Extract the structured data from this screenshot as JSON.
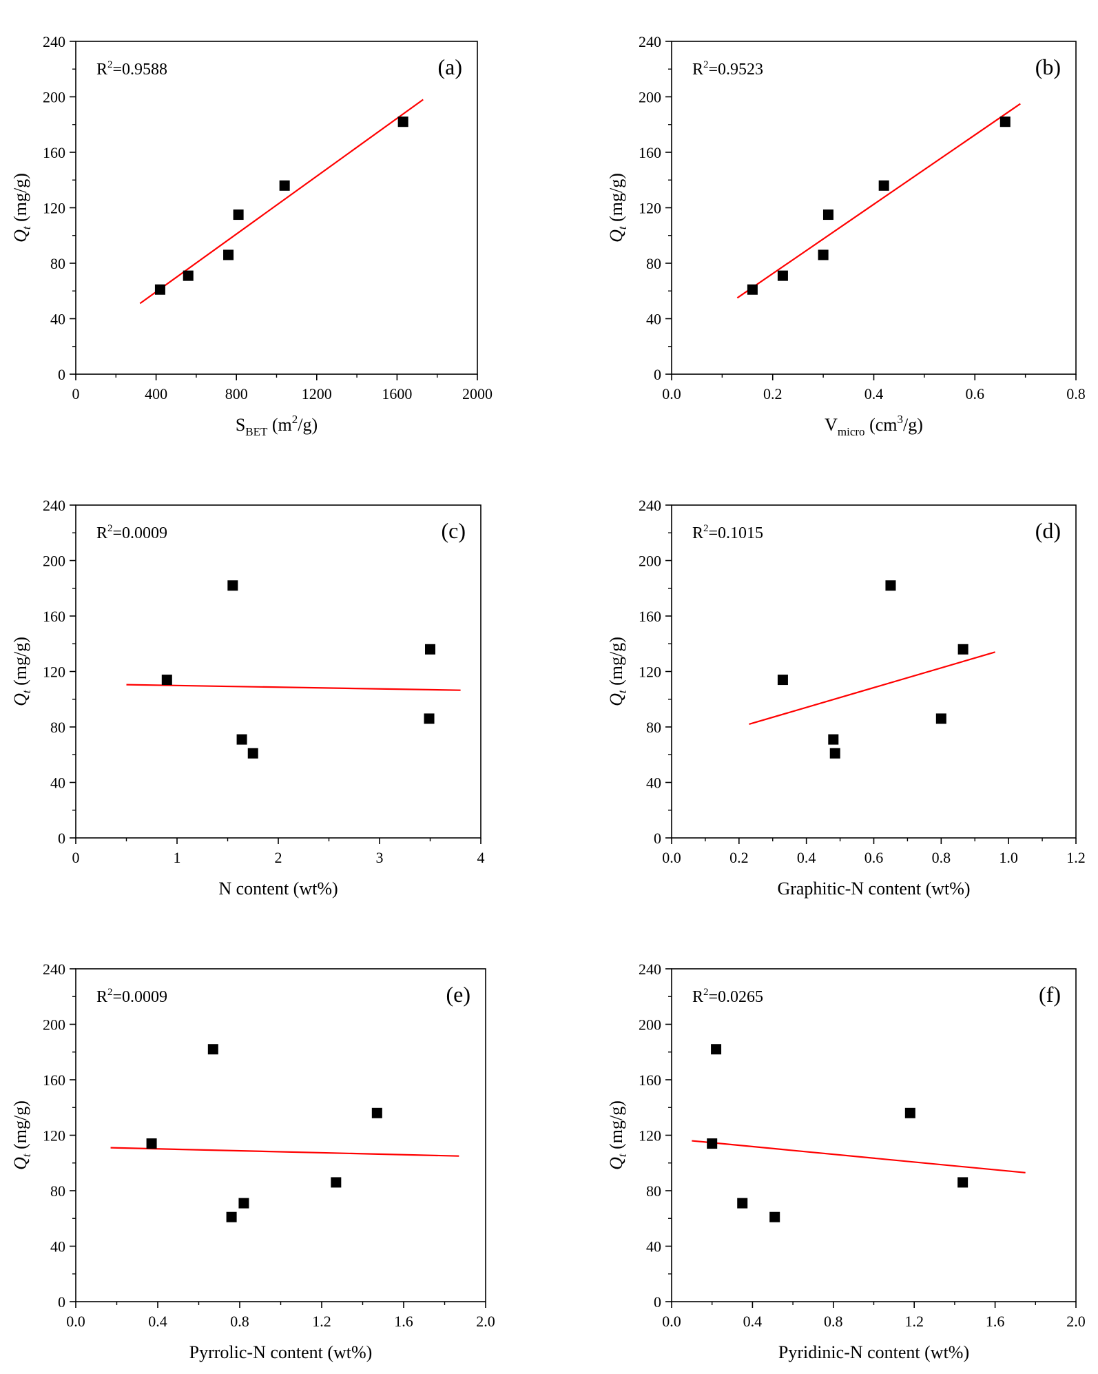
{
  "chart_data": [
    {
      "type": "scatter",
      "panel": "(a)",
      "r2_prefix": "R",
      "r2_sup": "2",
      "r2_value": "=0.9588",
      "ylabel": {
        "main": "Q",
        "sub": "t",
        "unit": " (mg/g)"
      },
      "xlabel": {
        "main": "S",
        "sub": "BET",
        "unit1": " (m",
        "sup": "2",
        "unit2": "/g)"
      },
      "xlim": [
        0,
        2000
      ],
      "ylim": [
        0,
        240
      ],
      "xticks": [
        {
          "v": 0,
          "label": "0"
        },
        {
          "v": 400,
          "label": "400"
        },
        {
          "v": 800,
          "label": "800"
        },
        {
          "v": 1200,
          "label": "1200"
        },
        {
          "v": 1600,
          "label": "1600"
        },
        {
          "v": 2000,
          "label": "2000"
        }
      ],
      "yticks": [
        {
          "v": 0,
          "label": "0"
        },
        {
          "v": 40,
          "label": "40"
        },
        {
          "v": 80,
          "label": "80"
        },
        {
          "v": 120,
          "label": "120"
        },
        {
          "v": 160,
          "label": "160"
        },
        {
          "v": 200,
          "label": "200"
        },
        {
          "v": 240,
          "label": "240"
        }
      ],
      "points": [
        [
          420,
          61
        ],
        [
          560,
          71
        ],
        [
          760,
          86
        ],
        [
          810,
          115
        ],
        [
          1040,
          136
        ],
        [
          1630,
          182
        ]
      ],
      "fit": [
        [
          320,
          51
        ],
        [
          1730,
          198
        ]
      ]
    },
    {
      "type": "scatter",
      "panel": "(b)",
      "r2_prefix": "R",
      "r2_sup": "2",
      "r2_value": "=0.9523",
      "ylabel": {
        "main": "Q",
        "sub": "t",
        "unit": " (mg/g)"
      },
      "xlabel": {
        "main": "V",
        "sub": "micro",
        "unit1": " (cm",
        "sup": "3",
        "unit2": "/g)"
      },
      "xlim": [
        0,
        0.8
      ],
      "ylim": [
        0,
        240
      ],
      "xticks": [
        {
          "v": 0,
          "label": "0.0"
        },
        {
          "v": 0.2,
          "label": "0.2"
        },
        {
          "v": 0.4,
          "label": "0.4"
        },
        {
          "v": 0.6,
          "label": "0.6"
        },
        {
          "v": 0.8,
          "label": "0.8"
        }
      ],
      "yticks": [
        {
          "v": 0,
          "label": "0"
        },
        {
          "v": 40,
          "label": "40"
        },
        {
          "v": 80,
          "label": "80"
        },
        {
          "v": 120,
          "label": "120"
        },
        {
          "v": 160,
          "label": "160"
        },
        {
          "v": 200,
          "label": "200"
        },
        {
          "v": 240,
          "label": "240"
        }
      ],
      "points": [
        [
          0.16,
          61
        ],
        [
          0.22,
          71
        ],
        [
          0.3,
          86
        ],
        [
          0.31,
          115
        ],
        [
          0.42,
          136
        ],
        [
          0.66,
          182
        ]
      ],
      "fit": [
        [
          0.13,
          55
        ],
        [
          0.69,
          195
        ]
      ]
    },
    {
      "type": "scatter",
      "panel": "(c)",
      "r2_prefix": "R",
      "r2_sup": "2",
      "r2_value": "=0.0009",
      "ylabel": {
        "main": "Q",
        "sub": "t",
        "unit": " (mg/g)"
      },
      "xlabel": {
        "main": "N content (wt%)"
      },
      "xlim": [
        0,
        4
      ],
      "ylim": [
        0,
        240
      ],
      "xticks": [
        {
          "v": 0,
          "label": "0"
        },
        {
          "v": 1,
          "label": "1"
        },
        {
          "v": 2,
          "label": "2"
        },
        {
          "v": 3,
          "label": "3"
        },
        {
          "v": 4,
          "label": "4"
        }
      ],
      "yticks": [
        {
          "v": 0,
          "label": "0"
        },
        {
          "v": 40,
          "label": "40"
        },
        {
          "v": 80,
          "label": "80"
        },
        {
          "v": 120,
          "label": "120"
        },
        {
          "v": 160,
          "label": "160"
        },
        {
          "v": 200,
          "label": "200"
        },
        {
          "v": 240,
          "label": "240"
        }
      ],
      "points": [
        [
          0.9,
          114
        ],
        [
          1.55,
          182
        ],
        [
          1.64,
          71
        ],
        [
          1.75,
          61
        ],
        [
          3.5,
          136
        ],
        [
          3.49,
          86
        ]
      ],
      "fit": [
        [
          0.5,
          110.5
        ],
        [
          3.8,
          106.5
        ]
      ]
    },
    {
      "type": "scatter",
      "panel": "(d)",
      "r2_prefix": "R",
      "r2_sup": "2",
      "r2_value": "=0.1015",
      "ylabel": {
        "main": "Q",
        "sub": "t",
        "unit": " (mg/g)"
      },
      "xlabel": {
        "main": "Graphitic-N content (wt%)"
      },
      "xlim": [
        0,
        1.2
      ],
      "ylim": [
        0,
        240
      ],
      "xticks": [
        {
          "v": 0,
          "label": "0.0"
        },
        {
          "v": 0.2,
          "label": "0.2"
        },
        {
          "v": 0.4,
          "label": "0.4"
        },
        {
          "v": 0.6,
          "label": "0.6"
        },
        {
          "v": 0.8,
          "label": "0.8"
        },
        {
          "v": 1.0,
          "label": "1.0"
        },
        {
          "v": 1.2,
          "label": "1.2"
        }
      ],
      "yticks": [
        {
          "v": 0,
          "label": "0"
        },
        {
          "v": 40,
          "label": "40"
        },
        {
          "v": 80,
          "label": "80"
        },
        {
          "v": 120,
          "label": "120"
        },
        {
          "v": 160,
          "label": "160"
        },
        {
          "v": 200,
          "label": "200"
        },
        {
          "v": 240,
          "label": "240"
        }
      ],
      "points": [
        [
          0.33,
          114
        ],
        [
          0.48,
          71
        ],
        [
          0.485,
          61
        ],
        [
          0.65,
          182
        ],
        [
          0.8,
          86
        ],
        [
          0.865,
          136
        ]
      ],
      "fit": [
        [
          0.23,
          82
        ],
        [
          0.96,
          134
        ]
      ]
    },
    {
      "type": "scatter",
      "panel": "(e)",
      "r2_prefix": "R",
      "r2_sup": "2",
      "r2_value": "=0.0009",
      "ylabel": {
        "main": "Q",
        "sub": "t",
        "unit": " (mg/g)"
      },
      "xlabel": {
        "main": "Pyrrolic-N content (wt%)"
      },
      "xlim": [
        0,
        2.0
      ],
      "ylim": [
        0,
        240
      ],
      "xticks": [
        {
          "v": 0,
          "label": "0.0"
        },
        {
          "v": 0.4,
          "label": "0.4"
        },
        {
          "v": 0.8,
          "label": "0.8"
        },
        {
          "v": 1.2,
          "label": "1.2"
        },
        {
          "v": 1.6,
          "label": "1.6"
        },
        {
          "v": 2.0,
          "label": "2.0"
        }
      ],
      "yticks": [
        {
          "v": 0,
          "label": "0"
        },
        {
          "v": 40,
          "label": "40"
        },
        {
          "v": 80,
          "label": "80"
        },
        {
          "v": 120,
          "label": "120"
        },
        {
          "v": 160,
          "label": "160"
        },
        {
          "v": 200,
          "label": "200"
        },
        {
          "v": 240,
          "label": "240"
        }
      ],
      "points": [
        [
          0.37,
          114
        ],
        [
          0.67,
          182
        ],
        [
          0.76,
          61
        ],
        [
          0.82,
          71
        ],
        [
          1.27,
          86
        ],
        [
          1.47,
          136
        ]
      ],
      "fit": [
        [
          0.17,
          111
        ],
        [
          1.87,
          105
        ]
      ]
    },
    {
      "type": "scatter",
      "panel": "(f)",
      "r2_prefix": "R",
      "r2_sup": "2",
      "r2_value": "=0.0265",
      "ylabel": {
        "main": "Q",
        "sub": "t",
        "unit": " (mg/g)"
      },
      "xlabel": {
        "main": "Pyridinic-N content (wt%)"
      },
      "xlim": [
        0,
        2.0
      ],
      "ylim": [
        0,
        240
      ],
      "xticks": [
        {
          "v": 0,
          "label": "0.0"
        },
        {
          "v": 0.4,
          "label": "0.4"
        },
        {
          "v": 0.8,
          "label": "0.8"
        },
        {
          "v": 1.2,
          "label": "1.2"
        },
        {
          "v": 1.6,
          "label": "1.6"
        },
        {
          "v": 2.0,
          "label": "2.0"
        }
      ],
      "yticks": [
        {
          "v": 0,
          "label": "0"
        },
        {
          "v": 40,
          "label": "40"
        },
        {
          "v": 80,
          "label": "80"
        },
        {
          "v": 120,
          "label": "120"
        },
        {
          "v": 160,
          "label": "160"
        },
        {
          "v": 200,
          "label": "200"
        },
        {
          "v": 240,
          "label": "240"
        }
      ],
      "points": [
        [
          0.2,
          114
        ],
        [
          0.22,
          182
        ],
        [
          0.35,
          71
        ],
        [
          0.51,
          61
        ],
        [
          1.18,
          136
        ],
        [
          1.44,
          86
        ]
      ],
      "fit": [
        [
          0.1,
          116
        ],
        [
          1.75,
          93
        ]
      ]
    }
  ],
  "colors": {
    "fit_line": "#ff0000",
    "marker": "#000000",
    "axis": "#000000"
  }
}
